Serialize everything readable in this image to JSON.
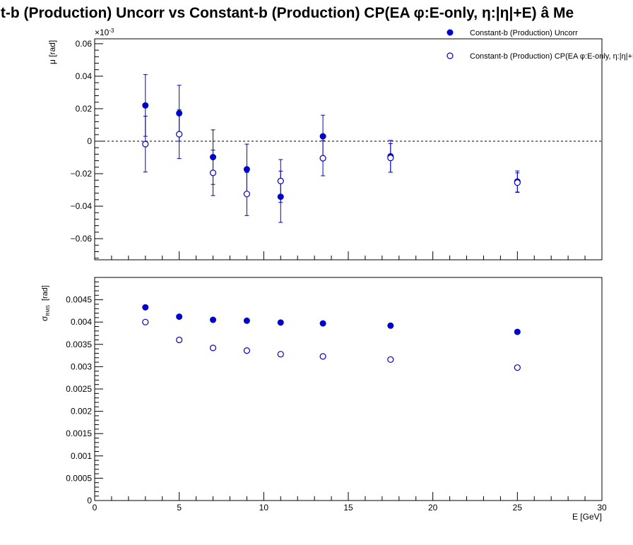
{
  "title": "nt-b (Production) Uncorr vs Constant-b (Production) CP(EA φ:E-only, η:|η|+E)  â  Me",
  "colors": {
    "series": "#0000cc",
    "axis": "#000000",
    "background": "#ffffff"
  },
  "legend": {
    "placement": "top-right",
    "entries": [
      {
        "label": "Constant-b (Production) Uncorr",
        "marker": "filled-circle"
      },
      {
        "label": "Constant-b (Production) CP(EA φ:E-only, η:|η|+E)",
        "marker": "open-circle"
      }
    ]
  },
  "chart_data": [
    {
      "type": "scatter",
      "panel": "top",
      "ylabel": "μ  [rad]",
      "yexponent": "×10",
      "yexponent_power": "-3",
      "xlim": [
        0,
        30
      ],
      "ylim": [
        -0.073,
        0.063
      ],
      "yticks": [
        "0.06",
        "0.04",
        "0.02",
        "0",
        "−0.02",
        "−0.04",
        "−0.06"
      ],
      "ytick_values": [
        0.06,
        0.04,
        0.02,
        0,
        -0.02,
        -0.04,
        -0.06
      ],
      "reference_line": {
        "y": 0,
        "style": "dashed"
      },
      "x": [
        3,
        5,
        7,
        9,
        11,
        13.5,
        17.5,
        25
      ],
      "series": [
        {
          "name": "Constant-b (Production) Uncorr",
          "marker": "filled",
          "values": [
            0.022,
            0.0172,
            -0.0098,
            -0.0173,
            -0.0342,
            0.003,
            -0.0093,
            -0.0248
          ],
          "errors": [
            0.019,
            0.0172,
            0.0168,
            0.0155,
            0.0158,
            0.013,
            0.0098,
            0.0065
          ]
        },
        {
          "name": "Constant-b (Production) CP(EA φ:E-only, η:|η|+E)",
          "marker": "open",
          "values": [
            -0.0018,
            0.0043,
            -0.0195,
            -0.0325,
            -0.0245,
            -0.0105,
            -0.0103,
            -0.0255
          ],
          "errors": [
            0.0172,
            0.015,
            0.014,
            0.0133,
            0.0132,
            0.0108,
            0.0088,
            0.006
          ]
        }
      ]
    },
    {
      "type": "scatter",
      "panel": "bottom",
      "ylabel": "σ",
      "ylabel_sub": "RMS",
      "ylabel_unit": "[rad]",
      "xlabel": "E  [GeV]",
      "xlim": [
        0,
        30
      ],
      "ylim": [
        0,
        0.005
      ],
      "xticks": [
        "0",
        "5",
        "10",
        "15",
        "20",
        "25",
        "30"
      ],
      "xtick_values": [
        0,
        5,
        10,
        15,
        20,
        25,
        30
      ],
      "yticks": [
        "0.0045",
        "0.004",
        "0.0035",
        "0.003",
        "0.0025",
        "0.002",
        "0.0015",
        "0.001",
        "0.0005",
        "0"
      ],
      "ytick_values": [
        0.0045,
        0.004,
        0.0035,
        0.003,
        0.0025,
        0.002,
        0.0015,
        0.001,
        0.0005,
        0
      ],
      "x": [
        3,
        5,
        7,
        9,
        11,
        13.5,
        17.5,
        25
      ],
      "series": [
        {
          "name": "Constant-b (Production) Uncorr",
          "marker": "filled",
          "values": [
            0.00433,
            0.00412,
            0.00405,
            0.00403,
            0.00399,
            0.00397,
            0.00392,
            0.00378
          ]
        },
        {
          "name": "Constant-b (Production) CP(EA φ:E-only, η:|η|+E)",
          "marker": "open",
          "values": [
            0.004,
            0.0036,
            0.00342,
            0.00336,
            0.00328,
            0.00323,
            0.00316,
            0.00298
          ]
        }
      ]
    }
  ]
}
